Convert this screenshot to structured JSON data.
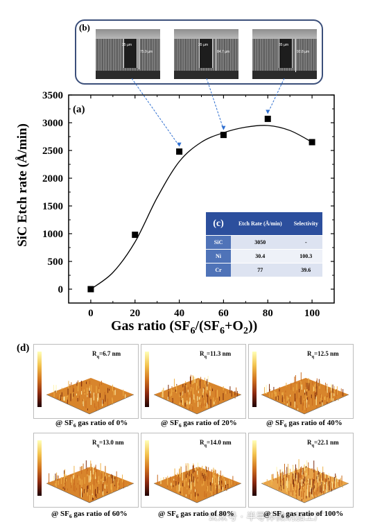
{
  "panel_labels": {
    "a": "(a)",
    "b": "(b)",
    "c": "(c)",
    "d": "(d)"
  },
  "sem_images": [
    {
      "width_label": "35 µm",
      "depth_label": "75.9 µm"
    },
    {
      "width_label": "35 µm",
      "depth_label": "84.7 µm"
    },
    {
      "width_label": "35 µm",
      "depth_label": "92.8 µm"
    }
  ],
  "chart_data": {
    "type": "scatter",
    "ylabel": "SiC Etch rate (Å/min)",
    "xlabel_parts": {
      "main": "Gas ratio (SF",
      "s1": "6",
      "mid": "/(SF",
      "s2": "6",
      "plus": "+O",
      "s3": "2",
      "end": "))"
    },
    "x": [
      0,
      20,
      40,
      60,
      80,
      100
    ],
    "y": [
      0,
      980,
      2480,
      2780,
      3070,
      2650
    ],
    "fit_curve": {
      "x": [
        0,
        10,
        20,
        30,
        40,
        50,
        60,
        70,
        80,
        90,
        100
      ],
      "y": [
        0,
        300,
        850,
        1650,
        2300,
        2650,
        2820,
        2920,
        2950,
        2860,
        2650
      ]
    },
    "xticks": [
      "0",
      "20",
      "40",
      "60",
      "80",
      "100"
    ],
    "yticks": [
      "0",
      "500",
      "1000",
      "1500",
      "2000",
      "2500",
      "3000",
      "3500"
    ],
    "xlim": [
      -10,
      110
    ],
    "ylim": [
      -250,
      3500
    ],
    "grid": false,
    "linked_sem_points": [
      40,
      60,
      80
    ]
  },
  "table_c": {
    "headers": [
      "",
      "Etch Rate (Å/min)",
      "Selectivity"
    ],
    "rows": [
      {
        "material": "SiC",
        "etch_rate": "3050",
        "selectivity": "-"
      },
      {
        "material": "Ni",
        "etch_rate": "30.4",
        "selectivity": "100.3"
      },
      {
        "material": "Cr",
        "etch_rate": "77",
        "selectivity": "39.6"
      }
    ]
  },
  "afm": [
    {
      "rq_prefix": "R",
      "rq_sub": "q",
      "rq_value": "=6.7 nm",
      "cap_pre": "@ SF",
      "cap_sub": "6",
      "cap_post": " gas ratio of 0%",
      "density": 0.35
    },
    {
      "rq_prefix": "R",
      "rq_sub": "q",
      "rq_value": "=11.3 nm",
      "cap_pre": "@ SF",
      "cap_sub": "6",
      "cap_post": " gas ratio of 20%",
      "density": 0.45
    },
    {
      "rq_prefix": "R",
      "rq_sub": "q",
      "rq_value": "=12.5 nm",
      "cap_pre": "@ SF",
      "cap_sub": "6",
      "cap_post": " gas ratio of 40%",
      "density": 0.5
    },
    {
      "rq_prefix": "R",
      "rq_sub": "q",
      "rq_value": "=13.0 nm",
      "cap_pre": "@ SF",
      "cap_sub": "6",
      "cap_post": " gas ratio of 60%",
      "density": 0.55
    },
    {
      "rq_prefix": "R",
      "rq_sub": "q",
      "rq_value": "=14.0 nm",
      "cap_pre": "@ SF",
      "cap_sub": "6",
      "cap_post": " gas ratio of 80%",
      "density": 0.6
    },
    {
      "rq_prefix": "R",
      "rq_sub": "q",
      "rq_value": "=22.1 nm",
      "cap_pre": "@ SF",
      "cap_sub": "6",
      "cap_post": " gas ratio of 100%",
      "density": 0.95
    }
  ],
  "watermark": "公众号 · 半导体微纳加工厂",
  "colors": {
    "frame": "#3b4f7a",
    "table_header": "#2c4f9d",
    "table_rowhead": "#4f73b8",
    "table_cell": "#dde3f1",
    "link_arrow": "#2f6fd0"
  }
}
